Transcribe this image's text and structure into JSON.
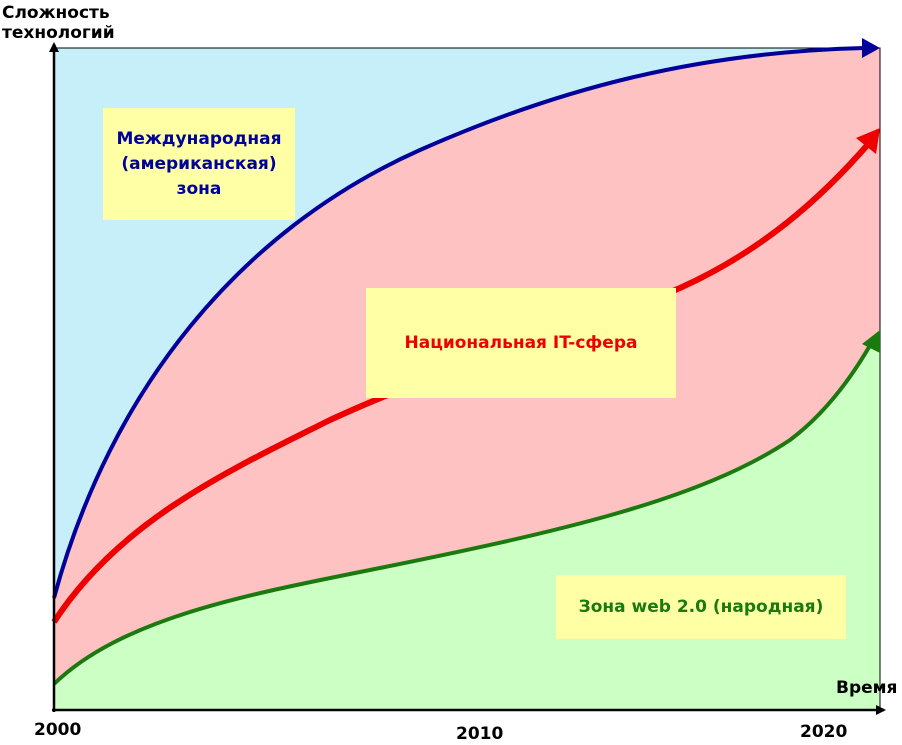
{
  "axes": {
    "y_label": "Сложность\nтехнологий",
    "x_label": "Время",
    "x_ticks": [
      "2000",
      "2010",
      "2020"
    ]
  },
  "zones": {
    "international": {
      "label": "Международная\n(американская)\nзона",
      "color": "#00009a",
      "fill": "#c6effa"
    },
    "national": {
      "label": "Национальная IT-сфера",
      "color": "#ee0000",
      "fill": "#ffc2c2"
    },
    "web20": {
      "label": "Зона web 2.0 (народная)",
      "color": "#1a7a0e",
      "fill": "#ccffc4"
    }
  },
  "colors": {
    "label_box": "#ffffa6",
    "axis": "#000000"
  }
}
